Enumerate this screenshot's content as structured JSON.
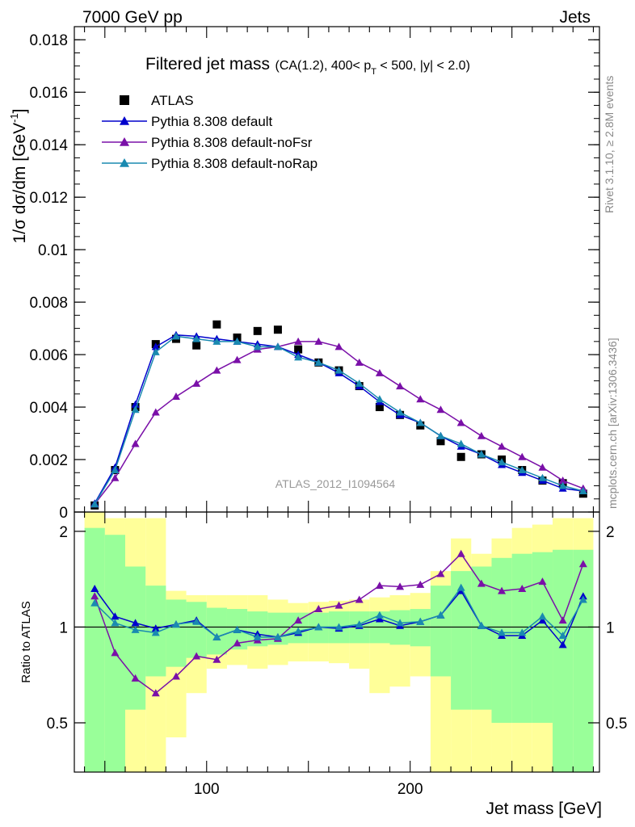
{
  "header": {
    "left": "7000 GeV pp",
    "right": "Jets"
  },
  "side_text": {
    "rivet": "Rivet 3.1.10, ≥ 2.8M events",
    "source": "mcplots.cern.ch [arXiv:1306.3436]"
  },
  "watermark": "ATLAS_2012_I1094564",
  "chart_data": [
    {
      "type": "scatter",
      "panel": "main",
      "title": "Filtered jet mass",
      "subtitle": "(CA(1.2), 400< p_T < 500, |y| < 2.0)",
      "xlabel": "Jet mass [GeV]",
      "ylabel": "1/σ dσ/dm [GeV⁻¹]",
      "xlim": [
        35,
        293
      ],
      "ylim": [
        0,
        0.0185
      ],
      "y_ticks": [
        "0",
        "0.002",
        "0.004",
        "0.006",
        "0.008",
        "0.01",
        "0.012",
        "0.014",
        "0.016",
        "0.018"
      ],
      "x_ticks": [
        "100",
        "200"
      ],
      "legend_position": "top-left",
      "x": [
        45,
        55,
        65,
        75,
        85,
        95,
        105,
        115,
        125,
        135,
        145,
        155,
        165,
        175,
        185,
        195,
        205,
        215,
        225,
        235,
        245,
        255,
        265,
        275,
        285
      ],
      "series": [
        {
          "name": "ATLAS",
          "color": "#000000",
          "marker": "square",
          "values": [
            0.00025,
            0.0016,
            0.004,
            0.0064,
            0.0066,
            0.00635,
            0.00715,
            0.00665,
            0.0069,
            0.00695,
            0.0062,
            0.0057,
            0.0054,
            0.0048,
            0.004,
            0.0037,
            0.0033,
            0.0027,
            0.0021,
            0.0022,
            0.002,
            0.0016,
            0.0012,
            0.0011,
            0.0007
          ]
        },
        {
          "name": "Pythia 8.308 default",
          "color": "#0000cc",
          "marker": "triangle",
          "values": [
            0.00033,
            0.0017,
            0.0041,
            0.0063,
            0.00675,
            0.0067,
            0.0066,
            0.0065,
            0.0064,
            0.0063,
            0.006,
            0.0057,
            0.0053,
            0.0048,
            0.0042,
            0.0037,
            0.0034,
            0.0029,
            0.0025,
            0.0022,
            0.0018,
            0.0015,
            0.0012,
            0.0009,
            0.0008
          ]
        },
        {
          "name": "Pythia 8.308 default-noFsr",
          "color": "#7a10a8",
          "marker": "triangle",
          "values": [
            0.0003,
            0.0013,
            0.0026,
            0.0038,
            0.0044,
            0.0049,
            0.0054,
            0.0058,
            0.0062,
            0.0063,
            0.0065,
            0.0065,
            0.0063,
            0.0057,
            0.0053,
            0.0048,
            0.0043,
            0.0039,
            0.0034,
            0.0029,
            0.0025,
            0.0021,
            0.0017,
            0.0012,
            0.0009
          ]
        },
        {
          "name": "Pythia 8.308 default-noRap",
          "color": "#1a8ab0",
          "marker": "triangle",
          "values": [
            0.0003,
            0.0016,
            0.0039,
            0.0061,
            0.0067,
            0.0066,
            0.0065,
            0.0065,
            0.0063,
            0.0063,
            0.0059,
            0.0057,
            0.0054,
            0.0049,
            0.0043,
            0.0038,
            0.0034,
            0.0029,
            0.0026,
            0.0022,
            0.0019,
            0.0016,
            0.0013,
            0.001,
            0.0008
          ]
        }
      ]
    },
    {
      "type": "line",
      "panel": "ratio",
      "ylabel": "Ratio to ATLAS",
      "xlabel": "Jet mass [GeV]",
      "xlim": [
        35,
        293
      ],
      "ylim": [
        0.35,
        2.3
      ],
      "y_ticks": [
        "0.5",
        "1",
        "2"
      ],
      "x_ticks": [
        "100",
        "200"
      ],
      "reference_line": 1,
      "x": [
        45,
        55,
        65,
        75,
        85,
        95,
        105,
        115,
        125,
        135,
        145,
        155,
        165,
        175,
        185,
        195,
        205,
        215,
        225,
        235,
        245,
        255,
        265,
        275,
        285
      ],
      "band_edges": [
        40,
        50,
        60,
        70,
        80,
        90,
        100,
        110,
        120,
        130,
        140,
        150,
        160,
        170,
        180,
        190,
        200,
        210,
        220,
        230,
        240,
        250,
        260,
        270,
        280,
        290
      ],
      "bands": [
        {
          "name": "stat",
          "color": "#99ff99",
          "lower": [
            0.35,
            0.35,
            0.55,
            0.7,
            0.75,
            0.8,
            0.82,
            0.85,
            0.87,
            0.88,
            0.89,
            0.89,
            0.89,
            0.89,
            0.89,
            0.88,
            0.87,
            0.7,
            0.55,
            0.55,
            0.5,
            0.5,
            0.5,
            0.35,
            0.35
          ],
          "upper": [
            2.05,
            1.95,
            1.55,
            1.35,
            1.22,
            1.2,
            1.15,
            1.14,
            1.12,
            1.11,
            1.11,
            1.11,
            1.12,
            1.12,
            1.12,
            1.13,
            1.14,
            1.35,
            1.5,
            1.55,
            1.65,
            1.7,
            1.72,
            1.75,
            1.75
          ]
        },
        {
          "name": "total",
          "color": "#ffff99",
          "lower": [
            0.35,
            0.35,
            0.35,
            0.35,
            0.45,
            0.62,
            0.74,
            0.76,
            0.74,
            0.76,
            0.78,
            0.78,
            0.77,
            0.74,
            0.62,
            0.65,
            0.7,
            0.35,
            0.35,
            0.35,
            0.35,
            0.35,
            0.35,
            0.35,
            0.42
          ],
          "upper": [
            2.3,
            2.2,
            2.2,
            2.2,
            1.3,
            1.26,
            1.26,
            1.26,
            1.26,
            1.22,
            1.19,
            1.2,
            1.21,
            1.22,
            1.24,
            1.26,
            1.28,
            1.5,
            1.9,
            1.7,
            1.9,
            2.05,
            2.1,
            2.2,
            2.2
          ]
        }
      ],
      "series": [
        {
          "name": "Pythia 8.308 default",
          "color": "#0000cc",
          "values": [
            1.32,
            1.08,
            1.03,
            0.99,
            1.02,
            1.05,
            0.93,
            0.98,
            0.95,
            0.93,
            0.96,
            1.0,
            0.99,
            1.01,
            1.06,
            1.01,
            1.04,
            1.09,
            1.3,
            1.01,
            0.94,
            0.94,
            1.05,
            0.88,
            1.25
          ]
        },
        {
          "name": "Pythia 8.308 default-noFsr",
          "color": "#7a10a8",
          "values": [
            1.25,
            0.83,
            0.69,
            0.62,
            0.7,
            0.81,
            0.79,
            0.89,
            0.91,
            0.92,
            1.05,
            1.14,
            1.17,
            1.22,
            1.35,
            1.34,
            1.36,
            1.47,
            1.7,
            1.37,
            1.3,
            1.32,
            1.39,
            1.05,
            1.58
          ]
        },
        {
          "name": "Pythia 8.308 default-noRap",
          "color": "#1a8ab0",
          "values": [
            1.19,
            1.03,
            0.98,
            0.96,
            1.02,
            1.04,
            0.93,
            0.98,
            0.93,
            0.93,
            0.97,
            1.0,
            1.0,
            1.02,
            1.09,
            1.03,
            1.04,
            1.09,
            1.33,
            1.01,
            0.96,
            0.96,
            1.08,
            0.94,
            1.22
          ]
        }
      ]
    }
  ]
}
